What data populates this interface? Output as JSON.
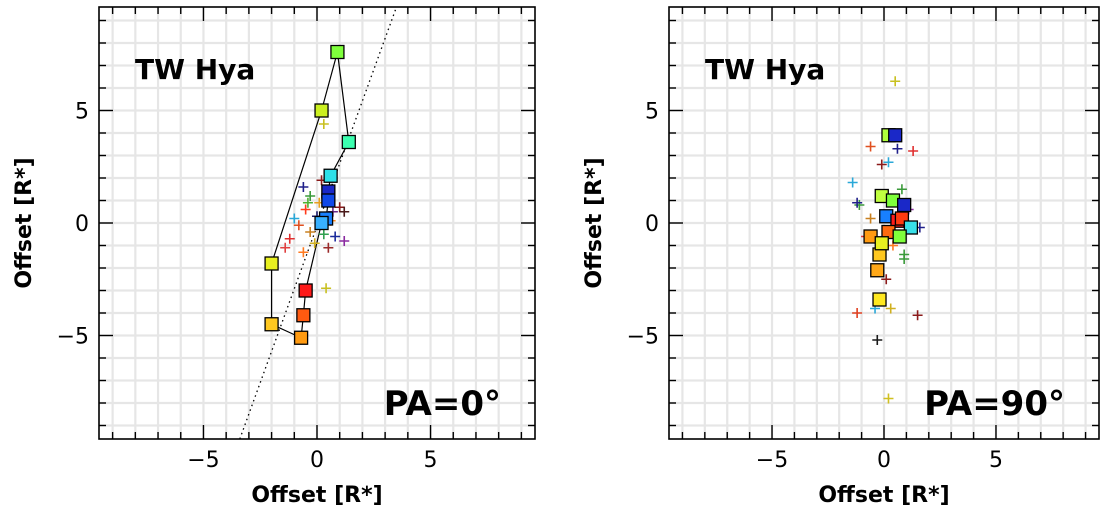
{
  "chart_data": [
    {
      "type": "scatter",
      "title": "TW Hya",
      "annotation": "PA=0°",
      "xlabel": "Offset [R*]",
      "ylabel": "Offset [R*]",
      "xlim": [
        -9.6,
        9.6
      ],
      "ylim": [
        -9.6,
        9.6
      ],
      "xticks": [
        -5,
        0,
        5
      ],
      "yticks": [
        -5,
        0,
        5
      ],
      "grid": true,
      "dotted_line": {
        "x": [
          -3.4,
          3.5
        ],
        "y": [
          -9.6,
          9.6
        ]
      },
      "square_series": {
        "connected": true,
        "points": [
          {
            "x": 0.9,
            "y": 7.6,
            "color": "#7fff3c"
          },
          {
            "x": 1.4,
            "y": 3.6,
            "color": "#3cffb0"
          },
          {
            "x": 0.6,
            "y": 2.1,
            "color": "#2ee0e8"
          },
          {
            "x": 0.5,
            "y": 1.4,
            "color": "#1a28c8"
          },
          {
            "x": 0.5,
            "y": 1.0,
            "color": "#1048e8"
          },
          {
            "x": 0.4,
            "y": 0.2,
            "color": "#1880ff"
          },
          {
            "x": 0.2,
            "y": 0.0,
            "color": "#38b0ff"
          },
          {
            "x": -0.5,
            "y": -3.0,
            "color": "#ff1a1a"
          },
          {
            "x": -0.6,
            "y": -4.1,
            "color": "#ff5a10"
          },
          {
            "x": -0.7,
            "y": -5.1,
            "color": "#ff9a10"
          },
          {
            "x": -2.0,
            "y": -4.5,
            "color": "#ffc820"
          },
          {
            "x": -2.0,
            "y": -1.8,
            "color": "#e8f020"
          },
          {
            "x": 0.2,
            "y": 5.0,
            "color": "#ccf020"
          }
        ]
      },
      "cross_series": {
        "points": [
          {
            "x": 0.3,
            "y": 4.4,
            "color": "#c8c020"
          },
          {
            "x": -0.6,
            "y": 1.6,
            "color": "#20208a"
          },
          {
            "x": 0.2,
            "y": 1.9,
            "color": "#8b1a1a"
          },
          {
            "x": -0.3,
            "y": 1.2,
            "color": "#3a9a3a"
          },
          {
            "x": 0.1,
            "y": 0.9,
            "color": "#e8a020"
          },
          {
            "x": -0.5,
            "y": 0.6,
            "color": "#ff3a1a"
          },
          {
            "x": 0.7,
            "y": 0.5,
            "color": "#6a2a8a"
          },
          {
            "x": 1.0,
            "y": 0.7,
            "color": "#8b1a1a"
          },
          {
            "x": 1.2,
            "y": 0.5,
            "color": "#4a1a1a"
          },
          {
            "x": -1.0,
            "y": 0.2,
            "color": "#2aa8d8"
          },
          {
            "x": -0.8,
            "y": -0.1,
            "color": "#e05020"
          },
          {
            "x": -0.3,
            "y": -0.4,
            "color": "#c88020"
          },
          {
            "x": 0.3,
            "y": -0.5,
            "color": "#30a050"
          },
          {
            "x": 0.8,
            "y": -0.6,
            "color": "#1a2a9a"
          },
          {
            "x": -1.2,
            "y": -0.7,
            "color": "#e03030"
          },
          {
            "x": -0.1,
            "y": -0.9,
            "color": "#d0b020"
          },
          {
            "x": 0.5,
            "y": -1.1,
            "color": "#9a2a2a"
          },
          {
            "x": 1.2,
            "y": -0.8,
            "color": "#8a2aa0"
          },
          {
            "x": -0.6,
            "y": -1.3,
            "color": "#ff7a20"
          },
          {
            "x": -1.4,
            "y": -1.1,
            "color": "#e04040"
          },
          {
            "x": 0.4,
            "y": -2.9,
            "color": "#c8c020"
          },
          {
            "x": 0.0,
            "y": 0.3,
            "color": "#1a1a6a"
          },
          {
            "x": -0.4,
            "y": 0.9,
            "color": "#50b030"
          },
          {
            "x": 0.6,
            "y": 0.1,
            "color": "#ff8a20"
          }
        ]
      }
    },
    {
      "type": "scatter",
      "title": "TW Hya",
      "annotation": "PA=90°",
      "xlabel": "Offset [R*]",
      "ylabel": "Offset [R*]",
      "xlim": [
        -9.6,
        9.6
      ],
      "ylim": [
        -9.6,
        9.6
      ],
      "xticks": [
        -5,
        0,
        5
      ],
      "yticks": [
        -5,
        0,
        5
      ],
      "grid": true,
      "square_series": {
        "connected": false,
        "points": [
          {
            "x": 0.2,
            "y": 3.9,
            "color": "#b0ff3c"
          },
          {
            "x": 0.5,
            "y": 3.9,
            "color": "#1a28c8"
          },
          {
            "x": -0.1,
            "y": 1.2,
            "color": "#c0ff40"
          },
          {
            "x": 0.4,
            "y": 1.0,
            "color": "#7fff3c"
          },
          {
            "x": 0.9,
            "y": 0.8,
            "color": "#1a28c8"
          },
          {
            "x": 0.1,
            "y": 0.3,
            "color": "#1880ff"
          },
          {
            "x": 0.6,
            "y": 0.1,
            "color": "#ff1a1a"
          },
          {
            "x": 0.8,
            "y": 0.2,
            "color": "#ff3a10"
          },
          {
            "x": 1.2,
            "y": -0.2,
            "color": "#38e0e8"
          },
          {
            "x": -0.6,
            "y": -0.6,
            "color": "#ff9a10"
          },
          {
            "x": 0.2,
            "y": -0.4,
            "color": "#ff6a10"
          },
          {
            "x": 0.7,
            "y": -0.6,
            "color": "#7fff3c"
          },
          {
            "x": -0.2,
            "y": -1.4,
            "color": "#ffc820"
          },
          {
            "x": -0.3,
            "y": -2.1,
            "color": "#ffa818"
          },
          {
            "x": -0.2,
            "y": -3.4,
            "color": "#ffe820"
          },
          {
            "x": -0.1,
            "y": -0.9,
            "color": "#e8f020"
          }
        ]
      },
      "cross_series": {
        "points": [
          {
            "x": 0.5,
            "y": 6.3,
            "color": "#c8c020"
          },
          {
            "x": 0.6,
            "y": 3.3,
            "color": "#20208a"
          },
          {
            "x": 1.3,
            "y": 3.2,
            "color": "#e03030"
          },
          {
            "x": -0.6,
            "y": 3.4,
            "color": "#e05020"
          },
          {
            "x": 0.2,
            "y": 2.7,
            "color": "#2aa8d8"
          },
          {
            "x": -0.1,
            "y": 2.6,
            "color": "#8b1a1a"
          },
          {
            "x": -1.4,
            "y": 1.8,
            "color": "#2aa8d8"
          },
          {
            "x": -1.1,
            "y": 0.8,
            "color": "#3a9a3a"
          },
          {
            "x": -1.2,
            "y": 0.9,
            "color": "#20208a"
          },
          {
            "x": 0.8,
            "y": 1.5,
            "color": "#3a9a3a"
          },
          {
            "x": 1.1,
            "y": 0.6,
            "color": "#8a2aa0"
          },
          {
            "x": -0.8,
            "y": -0.6,
            "color": "#e03030"
          },
          {
            "x": 0.9,
            "y": -1.4,
            "color": "#3a9a3a"
          },
          {
            "x": 0.9,
            "y": -1.6,
            "color": "#3a9a3a"
          },
          {
            "x": 0.1,
            "y": -2.5,
            "color": "#8b1a1a"
          },
          {
            "x": -1.2,
            "y": -4.0,
            "color": "#e04020"
          },
          {
            "x": -0.4,
            "y": -3.8,
            "color": "#2aa8d8"
          },
          {
            "x": 0.3,
            "y": -3.8,
            "color": "#d0b020"
          },
          {
            "x": 1.5,
            "y": -4.1,
            "color": "#8b1a1a"
          },
          {
            "x": -0.3,
            "y": -5.2,
            "color": "#1a1a1a"
          },
          {
            "x": 0.2,
            "y": -7.8,
            "color": "#d0c020"
          },
          {
            "x": 1.6,
            "y": -0.2,
            "color": "#20208a"
          },
          {
            "x": -0.6,
            "y": 0.2,
            "color": "#c88020"
          },
          {
            "x": 0.4,
            "y": -1.0,
            "color": "#ff7a20"
          }
        ]
      }
    }
  ]
}
